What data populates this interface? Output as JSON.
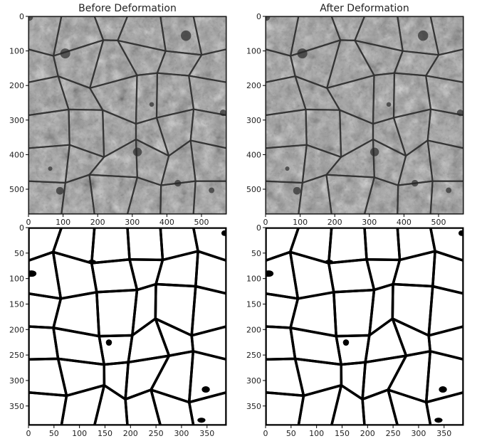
{
  "chart_data": [
    {
      "type": "image",
      "title": "Before Deformation",
      "content": "grayscale electron micrograph",
      "xticks": [
        0,
        100,
        200,
        300,
        400,
        500
      ],
      "yticks": [
        0,
        100,
        200,
        300,
        400,
        500
      ],
      "xlim": [
        0,
        572
      ],
      "ylim": [
        0,
        572
      ]
    },
    {
      "type": "image",
      "title": "After Deformation",
      "content": "grayscale electron micrograph",
      "xticks": [
        0,
        100,
        200,
        300,
        400,
        500
      ],
      "yticks": [
        0,
        100,
        200,
        300,
        400,
        500
      ],
      "xlim": [
        0,
        572
      ],
      "ylim": [
        0,
        572
      ]
    },
    {
      "type": "image",
      "title": "",
      "content": "binary segmentation mask",
      "xticks": [
        0,
        50,
        100,
        150,
        200,
        250,
        300,
        350
      ],
      "yticks": [
        0,
        50,
        100,
        150,
        200,
        250,
        300,
        350
      ],
      "xlim": [
        0,
        388
      ],
      "ylim": [
        0,
        388
      ]
    },
    {
      "type": "image",
      "title": "",
      "content": "binary segmentation mask",
      "xticks": [
        0,
        50,
        100,
        150,
        200,
        250,
        300,
        350
      ],
      "yticks": [
        0,
        50,
        100,
        150,
        200,
        250,
        300,
        350
      ],
      "xlim": [
        0,
        388
      ],
      "ylim": [
        0,
        388
      ]
    }
  ],
  "colors": {
    "micrograph_base": "#9a9a9a",
    "membrane": "#333333",
    "mask_background": "#ffffff",
    "mask_boundary": "#000000"
  }
}
